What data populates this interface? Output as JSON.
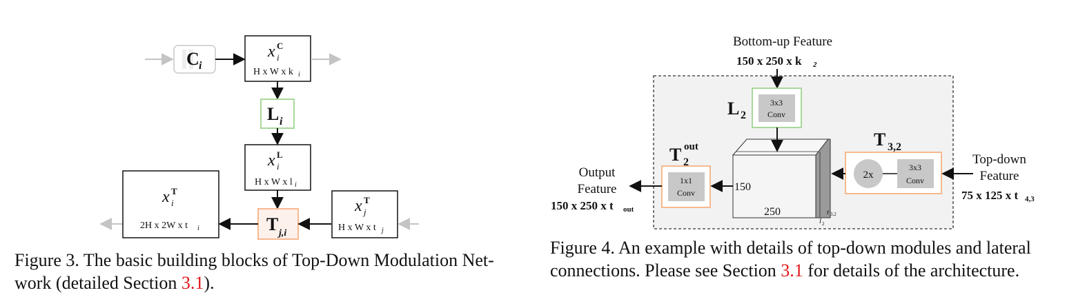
{
  "figure3": {
    "block_c": {
      "sym": "C",
      "sub": "i"
    },
    "block_xc": {
      "sym": "x",
      "sub": "i",
      "sup": "C",
      "dims": "H x W x k",
      "dims_sub": "i"
    },
    "block_l": {
      "sym": "L",
      "sub": "i"
    },
    "block_xl": {
      "sym": "x",
      "sub": "i",
      "sup": "L",
      "dims": "H x W x l",
      "dims_sub": "i"
    },
    "block_t": {
      "sym": "T",
      "sub": "j,i"
    },
    "block_xt_left": {
      "sym": "x",
      "sub": "i",
      "sup": "T",
      "dims": "2H x 2W x t",
      "dims_sub": "i"
    },
    "block_xt_right": {
      "sym": "x",
      "sub": "j",
      "sup": "T",
      "dims": "H x W x t",
      "dims_sub": "j"
    },
    "caption_pre": "Figure 3. The basic building blocks of Top-Down Modulation Net-",
    "caption_line2_pre": "work (detailed Section ",
    "caption_ref": "3.1",
    "caption_line2_post": ")."
  },
  "figure4": {
    "bottom_up_title": "Bottom-up Feature",
    "bottom_up_dims": "150 x 250 x k",
    "bottom_up_dims_sub": "2",
    "l2_label": "L",
    "l2_sub": "2",
    "l2_conv_top": "3x3",
    "l2_conv_bottom": "Conv",
    "tout_label": "T",
    "tout_sub": "2",
    "tout_sup": "out",
    "tout_conv_top": "1x1",
    "tout_conv_bottom": "Conv",
    "t32_label": "T",
    "t32_sub": "3,2",
    "upsample": "2x",
    "t32_conv_top": "3x3",
    "t32_conv_bottom": "Conv",
    "output_line1": "Output",
    "output_line2": "Feature",
    "output_dims": "150 x 250 x t",
    "output_dims_sub": "out",
    "topdown_line1": "Top-down",
    "topdown_line2": "Feature",
    "topdown_dims": "75 x 125 x t",
    "topdown_dims_sub": "4,3",
    "cube_height": "150",
    "cube_width": "250",
    "cube_depth_1": "t",
    "cube_depth_1_sub": "3,2",
    "cube_depth_2": "l",
    "cube_depth_2_sub": "2",
    "caption_line1": "Figure 4. An example with details of top-down modules and lateral",
    "caption_line2_pre": "connections. Please see Section ",
    "caption_ref": "3.1",
    "caption_line2_post": " for details of the architecture."
  },
  "colors": {
    "green_border": "#a8d89a",
    "orange_border": "#f6b98e",
    "conv_fill": "#c8c8c8",
    "panel_fill": "#f2f2f2"
  }
}
